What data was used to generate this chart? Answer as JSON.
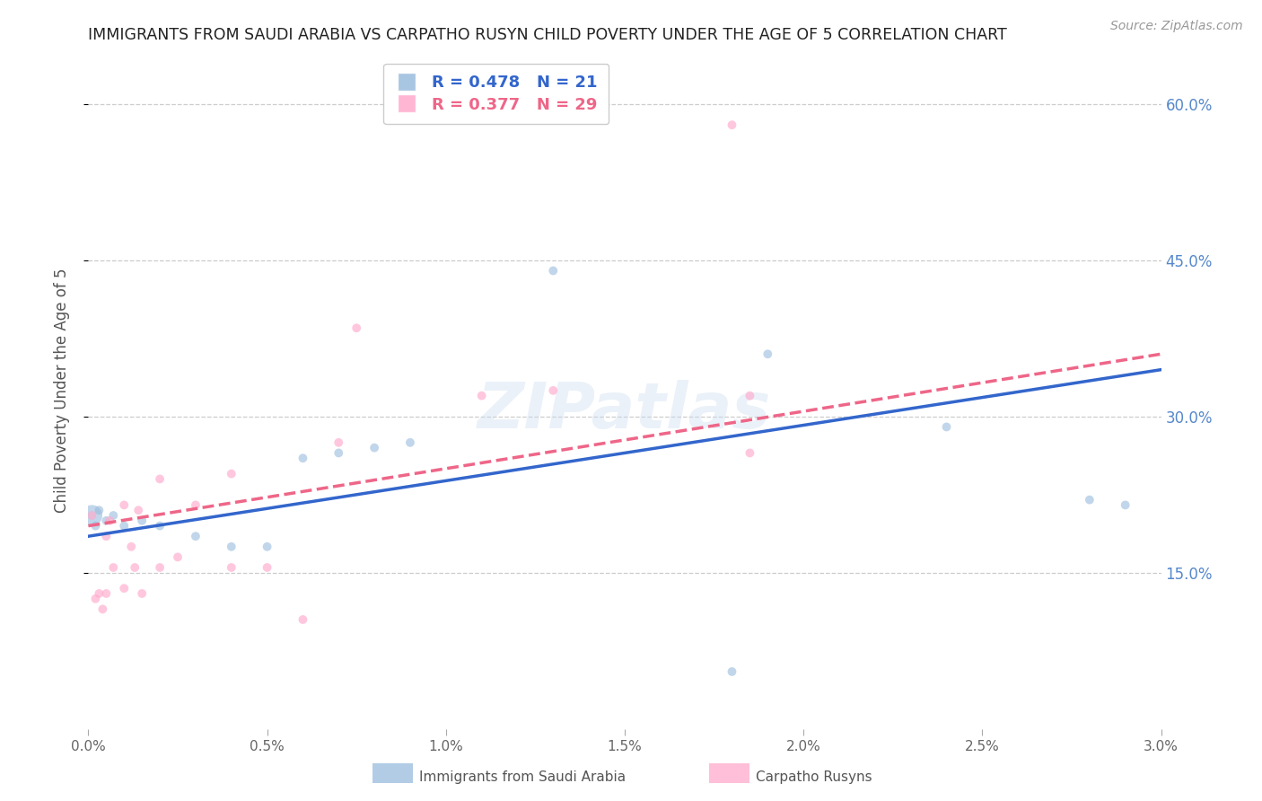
{
  "title": "IMMIGRANTS FROM SAUDI ARABIA VS CARPATHO RUSYN CHILD POVERTY UNDER THE AGE OF 5 CORRELATION CHART",
  "source": "Source: ZipAtlas.com",
  "ylabel": "Child Poverty Under the Age of 5",
  "xlim": [
    0.0,
    0.03
  ],
  "ylim": [
    0.0,
    0.65
  ],
  "yticks": [
    0.15,
    0.3,
    0.45,
    0.6
  ],
  "ytick_labels": [
    "15.0%",
    "30.0%",
    "45.0%",
    "60.0%"
  ],
  "xticks": [
    0.0,
    0.005,
    0.01,
    0.015,
    0.02,
    0.025,
    0.03
  ],
  "xtick_labels": [
    "0.0%",
    "0.5%",
    "1.0%",
    "1.5%",
    "2.0%",
    "2.5%",
    "3.0%"
  ],
  "legend_blue_r": "R = 0.478",
  "legend_blue_n": "N = 21",
  "legend_pink_r": "R = 0.377",
  "legend_pink_n": "N = 29",
  "blue_scatter_color": "#99BBDD",
  "pink_scatter_color": "#FFAACC",
  "blue_line_color": "#3366CC",
  "pink_line_color": "#EE6688",
  "watermark": "ZIPatlas",
  "legend_item1": "Immigrants from Saudi Arabia",
  "legend_item2": "Carpatho Rusyns",
  "blue_scatter_x": [
    0.0001,
    0.0002,
    0.0003,
    0.0005,
    0.0007,
    0.001,
    0.0015,
    0.002,
    0.003,
    0.004,
    0.005,
    0.006,
    0.007,
    0.008,
    0.009,
    0.013,
    0.018,
    0.019,
    0.024,
    0.028,
    0.029
  ],
  "blue_scatter_y": [
    0.205,
    0.195,
    0.21,
    0.2,
    0.205,
    0.195,
    0.2,
    0.195,
    0.185,
    0.175,
    0.175,
    0.26,
    0.265,
    0.27,
    0.275,
    0.44,
    0.055,
    0.36,
    0.29,
    0.22,
    0.215
  ],
  "blue_scatter_sizes": [
    280,
    50,
    50,
    50,
    50,
    50,
    50,
    50,
    50,
    50,
    50,
    50,
    50,
    50,
    50,
    50,
    50,
    50,
    50,
    50,
    50
  ],
  "pink_scatter_x": [
    0.0001,
    0.0002,
    0.0003,
    0.0004,
    0.0005,
    0.0005,
    0.0006,
    0.0007,
    0.001,
    0.001,
    0.0012,
    0.0013,
    0.0014,
    0.0015,
    0.002,
    0.002,
    0.0025,
    0.003,
    0.004,
    0.004,
    0.005,
    0.006,
    0.007,
    0.0075,
    0.011,
    0.013,
    0.018,
    0.0185,
    0.0185
  ],
  "pink_scatter_y": [
    0.205,
    0.125,
    0.13,
    0.115,
    0.13,
    0.185,
    0.2,
    0.155,
    0.135,
    0.215,
    0.175,
    0.155,
    0.21,
    0.13,
    0.24,
    0.155,
    0.165,
    0.215,
    0.245,
    0.155,
    0.155,
    0.105,
    0.275,
    0.385,
    0.32,
    0.325,
    0.58,
    0.32,
    0.265
  ],
  "pink_scatter_sizes": [
    50,
    50,
    50,
    50,
    50,
    50,
    50,
    50,
    50,
    50,
    50,
    50,
    50,
    50,
    50,
    50,
    50,
    50,
    50,
    50,
    50,
    50,
    50,
    50,
    50,
    50,
    50,
    50,
    50
  ],
  "blue_line_x0": 0.0,
  "blue_line_y0": 0.185,
  "blue_line_x1": 0.03,
  "blue_line_y1": 0.345,
  "pink_line_x0": 0.0,
  "pink_line_y0": 0.195,
  "pink_line_x1": 0.03,
  "pink_line_y1": 0.36
}
